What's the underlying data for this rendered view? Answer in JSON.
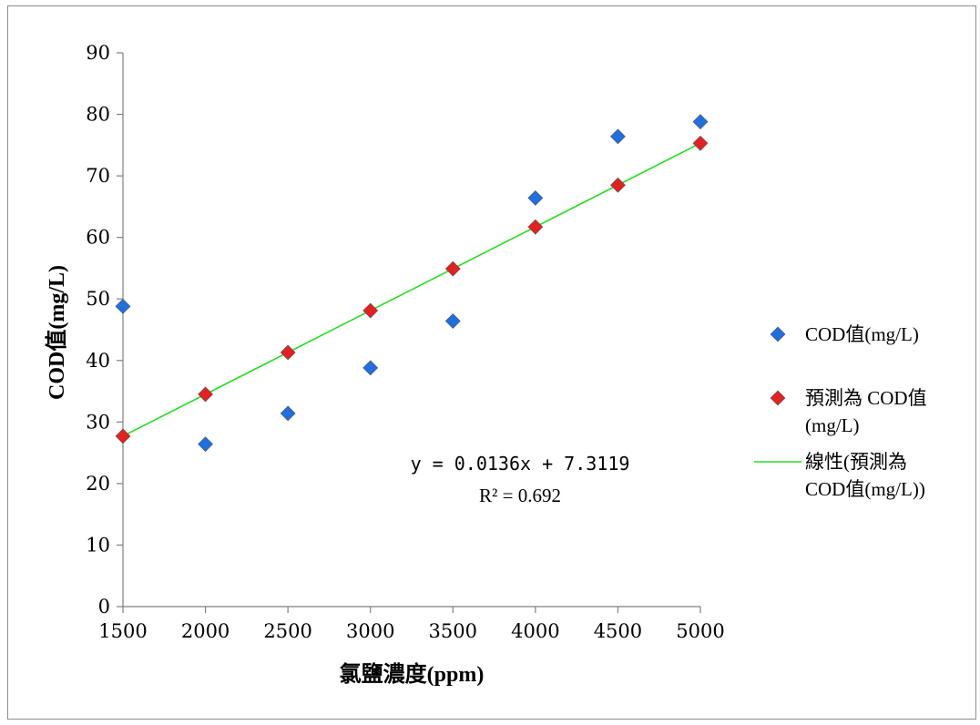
{
  "chart_data": {
    "type": "scatter",
    "xlabel": "氯鹽濃度(ppm)",
    "ylabel": "COD值(mg/L)",
    "xlim": [
      1500,
      5000
    ],
    "ylim": [
      0,
      90
    ],
    "xticks": [
      1500,
      2000,
      2500,
      3000,
      3500,
      4000,
      4500,
      5000
    ],
    "yticks": [
      0,
      10,
      20,
      30,
      40,
      50,
      60,
      70,
      80,
      90
    ],
    "grid": false,
    "legend_position": "right",
    "series": [
      {
        "name": "COD值(mg/L)",
        "marker": "diamond",
        "color": "#1f6fe0",
        "points": [
          [
            1500,
            48.8
          ],
          [
            2000,
            26.4
          ],
          [
            2500,
            31.4
          ],
          [
            3000,
            38.8
          ],
          [
            3500,
            46.4
          ],
          [
            4000,
            66.4
          ],
          [
            4500,
            76.4
          ],
          [
            5000,
            78.8
          ]
        ]
      },
      {
        "name": "預測為 COD值(mg/L)",
        "marker": "diamond",
        "color": "#e52020",
        "points": [
          [
            1500,
            27.7
          ],
          [
            2000,
            34.5
          ],
          [
            2500,
            41.3
          ],
          [
            3000,
            48.1
          ],
          [
            3500,
            54.9
          ],
          [
            4000,
            61.7
          ],
          [
            4500,
            68.5
          ],
          [
            5000,
            75.3
          ]
        ]
      }
    ],
    "trendline": {
      "name": "線性(預測為 COD值(mg/L))",
      "color": "#22dd22",
      "slope": 0.0136,
      "intercept": 7.3119,
      "equation": "y = 0.0136x + 7.3119",
      "r2": "R² = 0.692"
    },
    "legend": {
      "entries": [
        {
          "lines": [
            "COD值(mg/L)"
          ]
        },
        {
          "lines": [
            "預測為 COD值",
            "(mg/L)"
          ]
        },
        {
          "lines": [
            "線性(預測為",
            "COD值(mg/L))"
          ]
        }
      ]
    }
  }
}
